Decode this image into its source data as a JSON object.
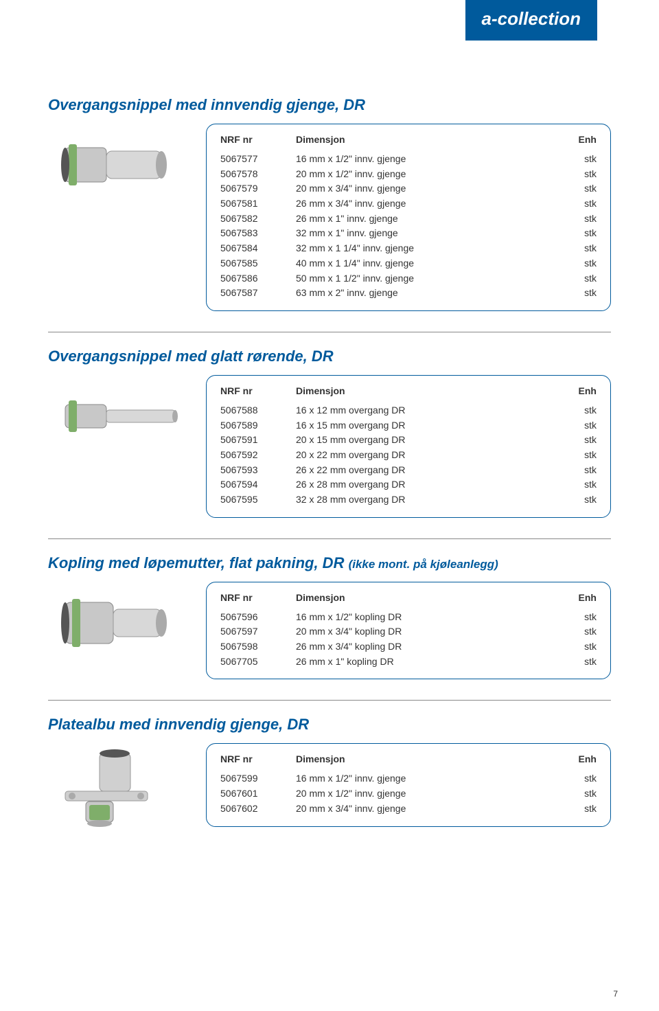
{
  "brand": "a-collection",
  "page_number": "7",
  "headers": {
    "nrf": "NRF nr",
    "dim": "Dimensjon",
    "enh": "Enh"
  },
  "sections": [
    {
      "title": "Overgangsnippel med innvendig gjenge, DR",
      "rows": [
        {
          "nrf": "5067577",
          "dim": "16 mm x 1/2\" innv. gjenge",
          "enh": "stk"
        },
        {
          "nrf": "5067578",
          "dim": "20 mm x 1/2\" innv. gjenge",
          "enh": "stk"
        },
        {
          "nrf": "5067579",
          "dim": "20 mm x 3/4\" innv. gjenge",
          "enh": "stk"
        },
        {
          "nrf": "5067581",
          "dim": "26 mm x 3/4\" innv. gjenge",
          "enh": "stk"
        },
        {
          "nrf": "5067582",
          "dim": "26 mm x 1\" innv. gjenge",
          "enh": "stk"
        },
        {
          "nrf": "5067583",
          "dim": "32 mm x 1\" innv. gjenge",
          "enh": "stk"
        },
        {
          "nrf": "5067584",
          "dim": "32 mm x 1 1/4\" innv. gjenge",
          "enh": "stk"
        },
        {
          "nrf": "5067585",
          "dim": "40 mm x 1 1/4\" innv. gjenge",
          "enh": "stk"
        },
        {
          "nrf": "5067586",
          "dim": "50 mm x 1 1/2\" innv. gjenge",
          "enh": "stk"
        },
        {
          "nrf": "5067587",
          "dim": "63 mm x 2\" innv. gjenge",
          "enh": "stk"
        }
      ]
    },
    {
      "title": "Overgangsnippel med glatt rørende, DR",
      "rows": [
        {
          "nrf": "5067588",
          "dim": "16 x 12 mm overgang DR",
          "enh": "stk"
        },
        {
          "nrf": "5067589",
          "dim": "16 x 15 mm overgang DR",
          "enh": "stk"
        },
        {
          "nrf": "5067591",
          "dim": "20 x 15 mm overgang DR",
          "enh": "stk"
        },
        {
          "nrf": "5067592",
          "dim": "20 x 22 mm overgang DR",
          "enh": "stk"
        },
        {
          "nrf": "5067593",
          "dim": "26 x 22 mm  overgang DR",
          "enh": "stk"
        },
        {
          "nrf": "5067594",
          "dim": "26 x 28 mm overgang DR",
          "enh": "stk"
        },
        {
          "nrf": "5067595",
          "dim": "32 x 28 mm  overgang DR",
          "enh": "stk"
        }
      ]
    },
    {
      "title": "Kopling med løpemutter, flat pakning, DR ",
      "subtitle": "(ikke mont. på kjøleanlegg)",
      "rows": [
        {
          "nrf": "5067596",
          "dim": "16 mm x 1/2\" kopling DR",
          "enh": "stk"
        },
        {
          "nrf": "5067597",
          "dim": "20 mm x 3/4\" kopling DR",
          "enh": "stk"
        },
        {
          "nrf": "5067598",
          "dim": "26 mm x 3/4\" kopling DR",
          "enh": "stk"
        },
        {
          "nrf": "5067705",
          "dim": "26 mm x 1\" kopling DR",
          "enh": "stk"
        }
      ]
    },
    {
      "title": "Platealbu med innvendig gjenge, DR",
      "rows": [
        {
          "nrf": "5067599",
          "dim": "16 mm x 1/2\" innv. gjenge",
          "enh": "stk"
        },
        {
          "nrf": "5067601",
          "dim": "20 mm x 1/2\" innv. gjenge",
          "enh": "stk"
        },
        {
          "nrf": "5067602",
          "dim": "20 mm x 3/4\" innv. gjenge",
          "enh": "stk"
        }
      ]
    }
  ],
  "style": {
    "brand_bg": "#005a9c",
    "title_color": "#005a9c",
    "border_color": "#005a9c",
    "text_color": "#333333",
    "font_body": 14,
    "font_title": 22
  }
}
